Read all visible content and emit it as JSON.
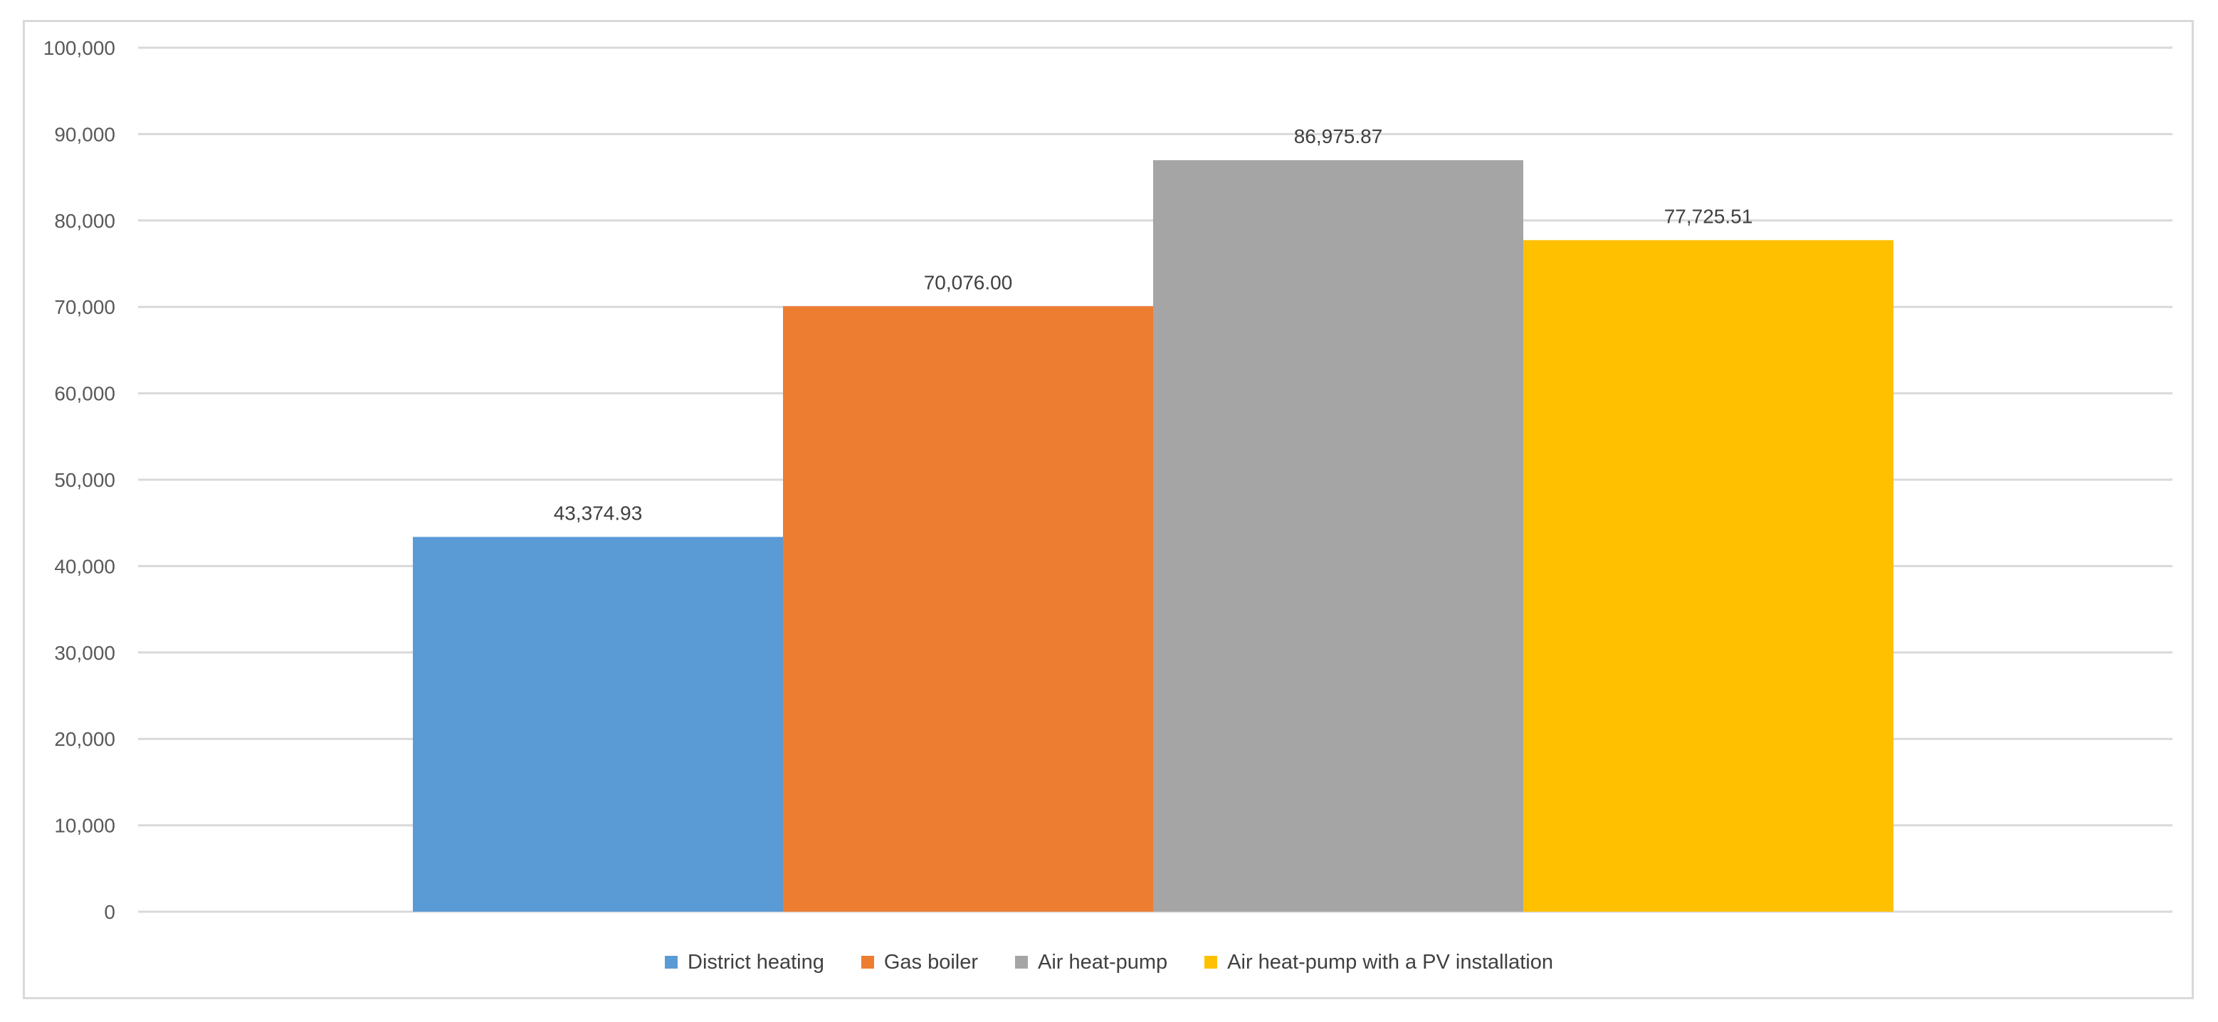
{
  "chart_data": {
    "type": "bar",
    "title": "",
    "xlabel": "",
    "ylabel": "",
    "ylim": [
      0,
      100000
    ],
    "yticks": [
      0,
      10000,
      20000,
      30000,
      40000,
      50000,
      60000,
      70000,
      80000,
      90000,
      100000
    ],
    "ytick_labels": [
      "0",
      "10,000",
      "20,000",
      "30,000",
      "40,000",
      "50,000",
      "60,000",
      "70,000",
      "80,000",
      "90,000",
      "100,000"
    ],
    "grid": true,
    "legend_position": "bottom",
    "series": [
      {
        "name": "District heating",
        "value": 43374.93,
        "label": "43,374.93",
        "color": "#5b9bd5"
      },
      {
        "name": "Gas boiler",
        "value": 70076.0,
        "label": "70,076.00",
        "color": "#ed7d31"
      },
      {
        "name": "Air heat-pump",
        "value": 86975.87,
        "label": "86,975.87",
        "color": "#a5a5a5"
      },
      {
        "name": "Air heat-pump with a PV installation",
        "value": 77725.51,
        "label": "77,725.51",
        "color": "#ffc000"
      }
    ]
  }
}
